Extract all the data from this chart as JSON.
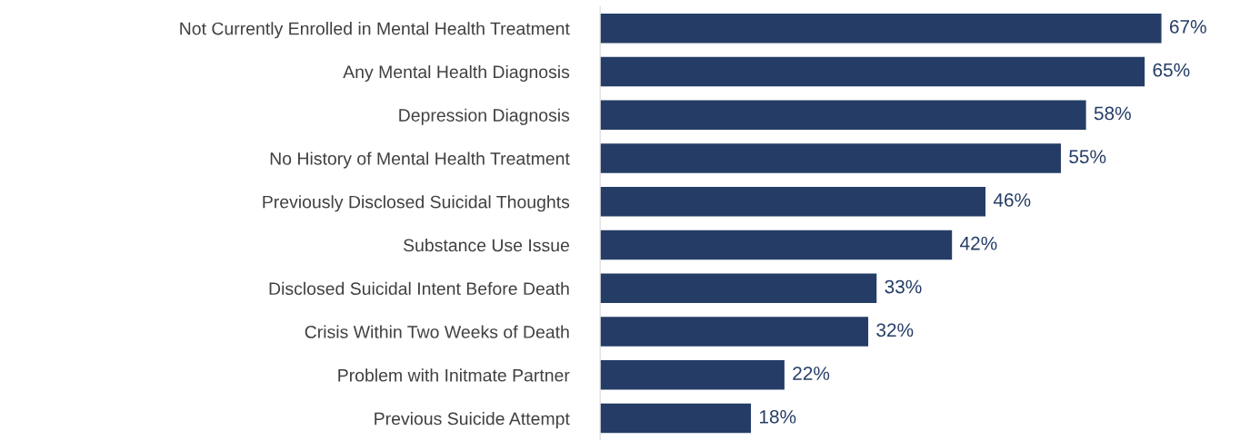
{
  "chart_data": {
    "type": "bar",
    "orientation": "horizontal",
    "categories": [
      "Not Currently Enrolled in Mental Health Treatment",
      "Any Mental Health Diagnosis",
      "Depression Diagnosis",
      "No History of Mental Health Treatment",
      "Previously Disclosed Suicidal Thoughts",
      "Substance Use Issue",
      "Disclosed Suicidal Intent Before Death",
      "Crisis Within Two Weeks of Death",
      "Problem with Initmate Partner",
      "Previous Suicide Attempt"
    ],
    "values": [
      67,
      65,
      58,
      55,
      46,
      42,
      33,
      32,
      22,
      18
    ],
    "value_labels": [
      "67%",
      "65%",
      "58%",
      "55%",
      "46%",
      "42%",
      "33%",
      "32%",
      "22%",
      "18%"
    ],
    "color": "#253d66",
    "grid": false,
    "legend": false
  }
}
